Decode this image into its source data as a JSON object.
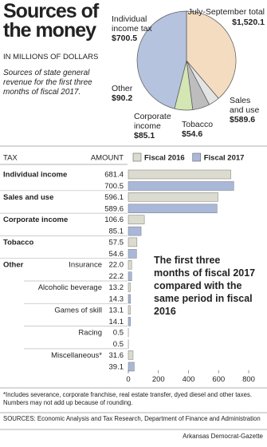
{
  "header": {
    "title": "Sources of the money",
    "unit": "IN MILLIONS OF DOLLARS",
    "subtitle": "Sources of state general revenue for the first three months of fiscal 2017."
  },
  "chart_data": [
    {
      "type": "pie",
      "title": "July-September total",
      "total": {
        "value": 1520.1,
        "label": "$1,520.1"
      },
      "categories": [
        "Sales and use",
        "Tobacco",
        "Corporate income",
        "Other",
        "Individual income tax"
      ],
      "values": [
        589.6,
        54.6,
        85.1,
        90.2,
        700.5
      ],
      "value_labels": [
        "$589.6",
        "$54.6",
        "$85.1",
        "$90.2",
        "$700.5"
      ],
      "colors": [
        "#f3dcc0",
        "#e4e4e4",
        "#bdbdbd",
        "#d3e6b4",
        "#b6c3de"
      ]
    },
    {
      "type": "hbar",
      "category_header": "TAX",
      "value_header": "AMOUNT",
      "categories": [
        "Individual income",
        "Sales and use",
        "Corporate income",
        "Tobacco",
        "Insurance",
        "Alcoholic beverage",
        "Games of skill",
        "Racing",
        "Miscellaneous*"
      ],
      "groups": [
        {
          "label": "Other",
          "count": 5
        }
      ],
      "series": [
        {
          "name": "Fiscal 2016",
          "color": "#dcdbcf",
          "values": [
            681.4,
            596.1,
            106.6,
            57.5,
            22.0,
            13.2,
            13.1,
            0.5,
            31.6
          ],
          "value_labels": [
            "681.4",
            "596.1",
            "106.6",
            "57.5",
            "22.0",
            "13.2",
            "13.1",
            "0.5",
            "31.6"
          ]
        },
        {
          "name": "Fiscal 2017",
          "color": "#a9b8d8",
          "values": [
            700.5,
            589.6,
            85.1,
            54.6,
            22.2,
            14.3,
            14.1,
            0.5,
            39.1
          ]
        }
      ],
      "xlim": [
        0,
        800
      ],
      "xticks": [
        0,
        200,
        400,
        600,
        800
      ],
      "annotation": "The first three months of fiscal 2017 compared with the same period in fiscal 2016"
    }
  ],
  "footer": {
    "note": "*Includes severance, corporate franchise, real estate transfer, dyed diesel and other taxes. Numbers may not add up because of rounding.",
    "sources": "SOURCES: Economic Analysis and Tax Research, Department of Finance and Administration",
    "credit": "Arkansas Democrat-Gazette"
  }
}
